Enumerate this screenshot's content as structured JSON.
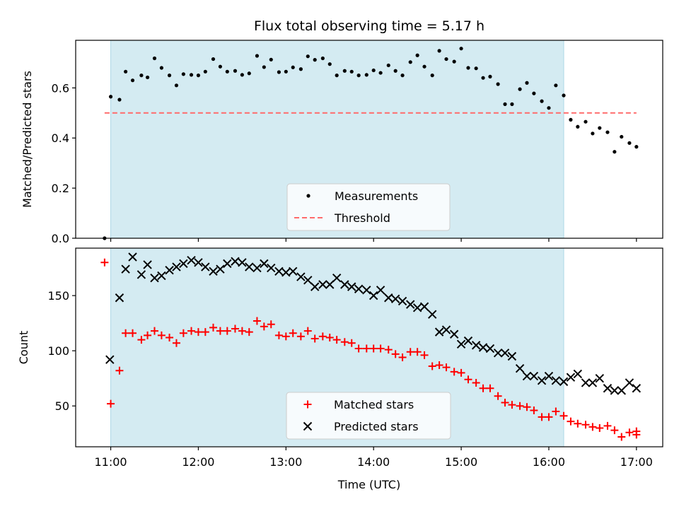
{
  "chart_data": {
    "title": "Flux total observing time = 5.17 h",
    "xlabel": "Time (UTC)",
    "x_unit": "hours UTC",
    "xlim": [
      10.6,
      17.3
    ],
    "x_ticks": [
      {
        "value": 11,
        "label": "11:00"
      },
      {
        "value": 12,
        "label": "12:00"
      },
      {
        "value": 13,
        "label": "13:00"
      },
      {
        "value": 14,
        "label": "14:00"
      },
      {
        "value": 15,
        "label": "15:00"
      },
      {
        "value": 16,
        "label": "16:00"
      },
      {
        "value": 17,
        "label": "17:00"
      }
    ],
    "highlight_span": {
      "x_start": 11.0,
      "x_end": 16.17,
      "color": "#add8e6"
    },
    "panels": [
      {
        "type": "scatter",
        "ylabel": "Matched/Predicted stars",
        "ylim": [
          0.0,
          0.79
        ],
        "y_ticks": [
          {
            "value": 0.0,
            "label": "0.0"
          },
          {
            "value": 0.2,
            "label": "0.2"
          },
          {
            "value": 0.4,
            "label": "0.4"
          },
          {
            "value": 0.6,
            "label": "0.6"
          }
        ],
        "legend": "bottom-center",
        "series": [
          {
            "name": "Measurements",
            "marker": "dot",
            "color": "#000000",
            "points": [
              [
                10.93,
                0.0
              ],
              [
                11.0,
                0.565
              ],
              [
                11.1,
                0.553
              ],
              [
                11.17,
                0.665
              ],
              [
                11.25,
                0.63
              ],
              [
                11.35,
                0.65
              ],
              [
                11.42,
                0.642
              ],
              [
                11.5,
                0.718
              ],
              [
                11.58,
                0.68
              ],
              [
                11.67,
                0.65
              ],
              [
                11.75,
                0.61
              ],
              [
                11.83,
                0.655
              ],
              [
                11.92,
                0.652
              ],
              [
                12.0,
                0.65
              ],
              [
                12.08,
                0.665
              ],
              [
                12.17,
                0.715
              ],
              [
                12.25,
                0.685
              ],
              [
                12.33,
                0.665
              ],
              [
                12.42,
                0.668
              ],
              [
                12.5,
                0.652
              ],
              [
                12.58,
                0.658
              ],
              [
                12.67,
                0.728
              ],
              [
                12.75,
                0.683
              ],
              [
                12.83,
                0.713
              ],
              [
                12.92,
                0.663
              ],
              [
                13.0,
                0.665
              ],
              [
                13.08,
                0.682
              ],
              [
                13.17,
                0.675
              ],
              [
                13.25,
                0.726
              ],
              [
                13.33,
                0.712
              ],
              [
                13.42,
                0.718
              ],
              [
                13.5,
                0.695
              ],
              [
                13.58,
                0.65
              ],
              [
                13.67,
                0.668
              ],
              [
                13.75,
                0.665
              ],
              [
                13.83,
                0.65
              ],
              [
                13.92,
                0.652
              ],
              [
                14.0,
                0.67
              ],
              [
                14.08,
                0.66
              ],
              [
                14.17,
                0.69
              ],
              [
                14.25,
                0.668
              ],
              [
                14.33,
                0.65
              ],
              [
                14.42,
                0.703
              ],
              [
                14.5,
                0.73
              ],
              [
                14.58,
                0.685
              ],
              [
                14.67,
                0.65
              ],
              [
                14.75,
                0.748
              ],
              [
                14.83,
                0.715
              ],
              [
                14.92,
                0.705
              ],
              [
                15.0,
                0.757
              ],
              [
                15.08,
                0.68
              ],
              [
                15.17,
                0.678
              ],
              [
                15.25,
                0.64
              ],
              [
                15.33,
                0.645
              ],
              [
                15.42,
                0.615
              ],
              [
                15.5,
                0.535
              ],
              [
                15.58,
                0.535
              ],
              [
                15.67,
                0.595
              ],
              [
                15.75,
                0.62
              ],
              [
                15.83,
                0.578
              ],
              [
                15.92,
                0.547
              ],
              [
                16.0,
                0.52
              ],
              [
                16.08,
                0.61
              ],
              [
                16.17,
                0.57
              ],
              [
                16.25,
                0.473
              ],
              [
                16.33,
                0.445
              ],
              [
                16.42,
                0.465
              ],
              [
                16.5,
                0.418
              ],
              [
                16.58,
                0.44
              ],
              [
                16.67,
                0.423
              ],
              [
                16.75,
                0.345
              ],
              [
                16.83,
                0.405
              ],
              [
                16.92,
                0.38
              ],
              [
                17.0,
                0.365
              ]
            ]
          },
          {
            "name": "Threshold",
            "marker": "dashed-line",
            "color": "#ff6b6b",
            "points": [
              [
                10.93,
                0.5
              ],
              [
                17.0,
                0.5
              ]
            ]
          }
        ]
      },
      {
        "type": "scatter",
        "ylabel": "Count",
        "ylim": [
          13,
          193
        ],
        "y_ticks": [
          {
            "value": 50,
            "label": "50"
          },
          {
            "value": 100,
            "label": "100"
          },
          {
            "value": 150,
            "label": "150"
          }
        ],
        "legend": "bottom-center",
        "series": [
          {
            "name": "Matched stars",
            "marker": "plus",
            "color": "#ff0000",
            "points": [
              [
                10.93,
                180
              ],
              [
                11.0,
                52
              ],
              [
                11.1,
                82
              ],
              [
                11.17,
                116
              ],
              [
                11.25,
                116
              ],
              [
                11.35,
                110
              ],
              [
                11.42,
                114
              ],
              [
                11.5,
                118
              ],
              [
                11.58,
                114
              ],
              [
                11.67,
                112
              ],
              [
                11.75,
                107
              ],
              [
                11.83,
                116
              ],
              [
                11.92,
                118
              ],
              [
                12.0,
                117
              ],
              [
                12.08,
                117
              ],
              [
                12.17,
                121
              ],
              [
                12.25,
                118
              ],
              [
                12.33,
                118
              ],
              [
                12.42,
                120
              ],
              [
                12.5,
                118
              ],
              [
                12.58,
                117
              ],
              [
                12.67,
                127
              ],
              [
                12.75,
                122
              ],
              [
                12.83,
                124
              ],
              [
                12.92,
                114
              ],
              [
                13.0,
                113
              ],
              [
                13.08,
                116
              ],
              [
                13.17,
                113
              ],
              [
                13.25,
                118
              ],
              [
                13.33,
                111
              ],
              [
                13.42,
                113
              ],
              [
                13.5,
                112
              ],
              [
                13.58,
                110
              ],
              [
                13.67,
                108
              ],
              [
                13.75,
                107
              ],
              [
                13.83,
                102
              ],
              [
                13.92,
                102
              ],
              [
                14.0,
                102
              ],
              [
                14.08,
                102
              ],
              [
                14.17,
                101
              ],
              [
                14.25,
                97
              ],
              [
                14.33,
                94
              ],
              [
                14.42,
                99
              ],
              [
                14.5,
                99
              ],
              [
                14.58,
                96
              ],
              [
                14.67,
                86
              ],
              [
                14.75,
                87
              ],
              [
                14.83,
                85
              ],
              [
                14.92,
                81
              ],
              [
                15.0,
                80
              ],
              [
                15.08,
                74
              ],
              [
                15.17,
                71
              ],
              [
                15.25,
                66
              ],
              [
                15.33,
                66
              ],
              [
                15.42,
                59
              ],
              [
                15.5,
                53
              ],
              [
                15.58,
                51
              ],
              [
                15.67,
                50
              ],
              [
                15.75,
                49
              ],
              [
                15.83,
                46
              ],
              [
                15.92,
                40
              ],
              [
                16.0,
                40
              ],
              [
                16.08,
                45
              ],
              [
                16.17,
                41
              ],
              [
                16.25,
                36
              ],
              [
                16.33,
                34
              ],
              [
                16.42,
                33
              ],
              [
                16.5,
                31
              ],
              [
                16.58,
                30
              ],
              [
                16.67,
                32
              ],
              [
                16.75,
                28
              ],
              [
                16.83,
                22
              ],
              [
                16.92,
                26
              ],
              [
                17.0,
                27
              ],
              [
                17.0,
                24
              ]
            ]
          },
          {
            "name": "Predicted stars",
            "marker": "x",
            "color": "#000000",
            "points": [
              [
                10.99,
                92
              ],
              [
                11.1,
                148
              ],
              [
                11.17,
                174
              ],
              [
                11.25,
                185
              ],
              [
                11.35,
                169
              ],
              [
                11.42,
                178
              ],
              [
                11.5,
                166
              ],
              [
                11.58,
                168
              ],
              [
                11.67,
                173
              ],
              [
                11.75,
                176
              ],
              [
                11.83,
                179
              ],
              [
                11.92,
                182
              ],
              [
                12.0,
                180
              ],
              [
                12.08,
                176
              ],
              [
                12.17,
                172
              ],
              [
                12.25,
                174
              ],
              [
                12.33,
                179
              ],
              [
                12.42,
                181
              ],
              [
                12.5,
                180
              ],
              [
                12.58,
                176
              ],
              [
                12.67,
                175
              ],
              [
                12.75,
                179
              ],
              [
                12.83,
                175
              ],
              [
                12.92,
                172
              ],
              [
                13.0,
                171
              ],
              [
                13.08,
                172
              ],
              [
                13.17,
                167
              ],
              [
                13.25,
                164
              ],
              [
                13.33,
                158
              ],
              [
                13.42,
                160
              ],
              [
                13.5,
                160
              ],
              [
                13.58,
                166
              ],
              [
                13.67,
                160
              ],
              [
                13.75,
                158
              ],
              [
                13.83,
                156
              ],
              [
                13.92,
                155
              ],
              [
                14.0,
                150
              ],
              [
                14.08,
                155
              ],
              [
                14.17,
                148
              ],
              [
                14.25,
                147
              ],
              [
                14.33,
                145
              ],
              [
                14.42,
                142
              ],
              [
                14.5,
                139
              ],
              [
                14.58,
                140
              ],
              [
                14.67,
                133
              ],
              [
                14.75,
                117
              ],
              [
                14.83,
                119
              ],
              [
                14.92,
                115
              ],
              [
                15.0,
                106
              ],
              [
                15.08,
                109
              ],
              [
                15.17,
                105
              ],
              [
                15.25,
                103
              ],
              [
                15.33,
                102
              ],
              [
                15.42,
                98
              ],
              [
                15.5,
                98
              ],
              [
                15.58,
                95
              ],
              [
                15.67,
                84
              ],
              [
                15.75,
                77
              ],
              [
                15.83,
                77
              ],
              [
                15.92,
                73
              ],
              [
                16.0,
                77
              ],
              [
                16.08,
                73
              ],
              [
                16.17,
                72
              ],
              [
                16.25,
                76
              ],
              [
                16.33,
                79
              ],
              [
                16.42,
                71
              ],
              [
                16.5,
                71
              ],
              [
                16.58,
                75
              ],
              [
                16.67,
                66
              ],
              [
                16.75,
                64
              ],
              [
                16.83,
                64
              ],
              [
                16.92,
                71
              ],
              [
                17.0,
                66
              ]
            ]
          }
        ]
      }
    ]
  }
}
